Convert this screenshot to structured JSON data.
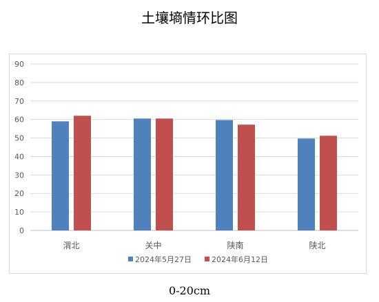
{
  "chart_data": {
    "type": "bar",
    "title": "土壤墒情环比图",
    "subtitle": "0-20cm",
    "categories": [
      "渭北",
      "关中",
      "陕南",
      "陕北"
    ],
    "series": [
      {
        "name": "2024年5月27日",
        "color": "#4f81bd",
        "values": [
          59,
          60.5,
          59.7,
          49.7
        ]
      },
      {
        "name": "2024年6月12日",
        "color": "#c0504d",
        "values": [
          62,
          60.5,
          57.2,
          51.2
        ]
      }
    ],
    "ylim": [
      0,
      90
    ],
    "yticks": [
      0,
      10,
      20,
      30,
      40,
      50,
      60,
      70,
      80,
      90
    ],
    "grid": true,
    "legend_position": "bottom",
    "xlabel": "",
    "ylabel": ""
  }
}
